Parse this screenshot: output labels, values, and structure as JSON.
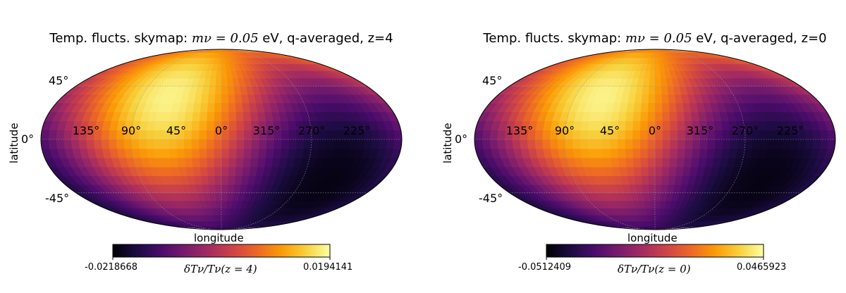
{
  "chart_data": [
    {
      "type": "heatmap",
      "title": {
        "prefix": "Temp. flucts. skymap: ",
        "math": "mν = 0.05",
        "suffix": " eV, q-averaged, z=4"
      },
      "projection": "mollweide",
      "xlabel": "longitude",
      "ylabel": "latitude",
      "lon_ticks": [
        "135°",
        "90°",
        "45°",
        "0°",
        "315°",
        "270°",
        "225°"
      ],
      "lat_ticks": [
        "45°",
        "0°",
        "-45°"
      ],
      "colormap": "inferno",
      "vmin": -0.0218668,
      "vmax": 0.0194141,
      "vmin_label": "-0.0218668",
      "vmax_label": "0.0194141",
      "colorbar_label": "δTν/Tν(z = 4)",
      "hot_spot": {
        "lon": 60,
        "lat": 35
      },
      "cold_spot": {
        "lon": 185,
        "lat": 10
      }
    },
    {
      "type": "heatmap",
      "title": {
        "prefix": "Temp. flucts. skymap: ",
        "math": "mν = 0.05",
        "suffix": " eV, q-averaged, z=0"
      },
      "projection": "mollweide",
      "xlabel": "longitude",
      "ylabel": "latitude",
      "lon_ticks": [
        "135°",
        "90°",
        "45°",
        "0°",
        "315°",
        "270°",
        "225°"
      ],
      "lat_ticks": [
        "45°",
        "0°",
        "-45°"
      ],
      "colormap": "inferno",
      "vmin": -0.0512409,
      "vmax": 0.0465923,
      "vmin_label": "-0.0512409",
      "vmax_label": "0.0465923",
      "colorbar_label": "δTν/Tν(z = 0)",
      "hot_spot": {
        "lon": 60,
        "lat": 35
      },
      "cold_spot": {
        "lon": 185,
        "lat": 10
      }
    }
  ],
  "colors": {
    "inferno": [
      "#000004",
      "#1b0c41",
      "#4a0c6b",
      "#781c6d",
      "#a52c60",
      "#cf4446",
      "#ed6925",
      "#fb9b06",
      "#f7d13d",
      "#fcffa4"
    ],
    "grid": "#9a9a9a",
    "outline": "#000000"
  }
}
